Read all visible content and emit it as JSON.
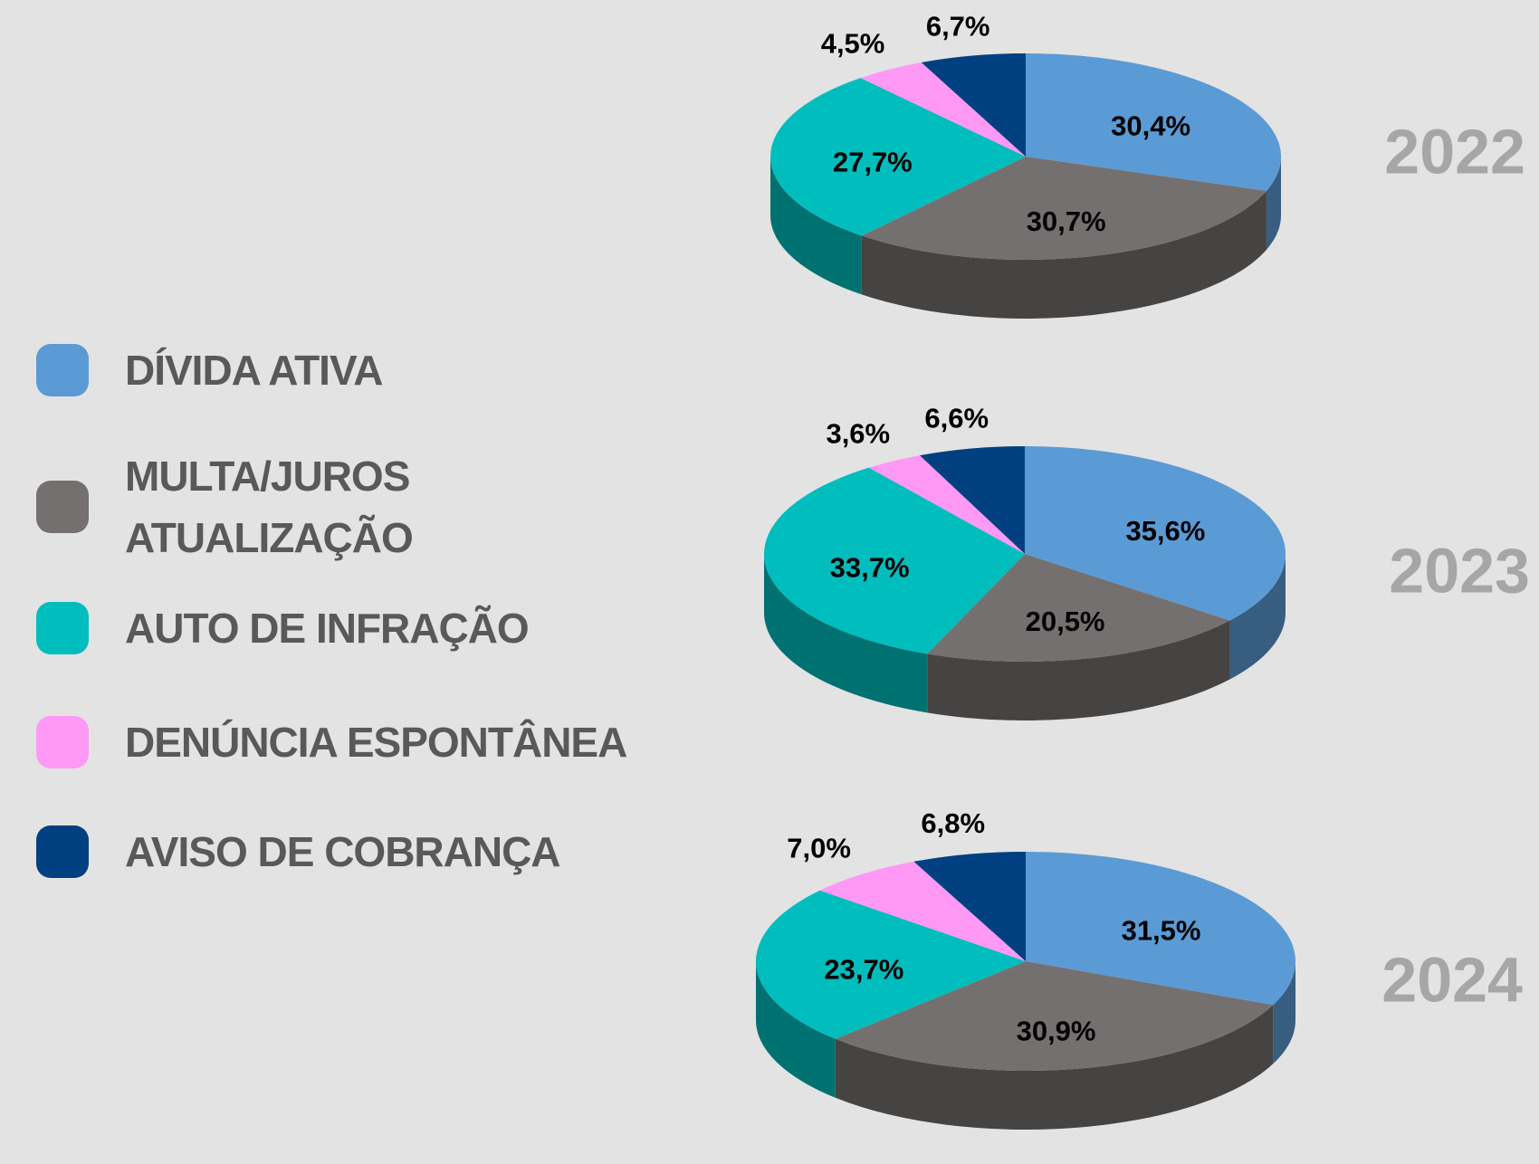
{
  "chart_data": [
    {
      "type": "pie",
      "title": "2022",
      "categories": [
        "DÍVIDA ATIVA",
        "MULTA/JUROS ATUALIZAÇÃO",
        "AUTO DE INFRAÇÃO",
        "DENÚNCIA ESPONTÂNEA",
        "AVISO DE COBRANÇA"
      ],
      "values": [
        30.4,
        30.7,
        27.7,
        4.5,
        6.7
      ],
      "value_labels": [
        "30,4%",
        "30,7%",
        "27,7%",
        "4,5%",
        "6,7%"
      ],
      "colors": [
        "#5b9bd5",
        "#757070",
        "#00bdbd",
        "#ff99f5",
        "#004080"
      ]
    },
    {
      "type": "pie",
      "title": "2023",
      "categories": [
        "DÍVIDA ATIVA",
        "MULTA/JUROS ATUALIZAÇÃO",
        "AUTO DE INFRAÇÃO",
        "DENÚNCIA ESPONTÂNEA",
        "AVISO DE COBRANÇA"
      ],
      "values": [
        35.6,
        20.5,
        33.7,
        3.6,
        6.6
      ],
      "value_labels": [
        "35,6%",
        "20,5%",
        "33,7%",
        "3,6%",
        "6,6%"
      ],
      "colors": [
        "#5b9bd5",
        "#757070",
        "#00bdbd",
        "#ff99f5",
        "#004080"
      ]
    },
    {
      "type": "pie",
      "title": "2024",
      "categories": [
        "DÍVIDA ATIVA",
        "MULTA/JUROS ATUALIZAÇÃO",
        "AUTO DE INFRAÇÃO",
        "DENÚNCIA ESPONTÂNEA",
        "AVISO DE COBRANÇA"
      ],
      "values": [
        31.5,
        30.9,
        23.7,
        7.0,
        6.8
      ],
      "value_labels": [
        "31,5%",
        "30,9%",
        "23,7%",
        "7,0%",
        "6,8%"
      ],
      "colors": [
        "#5b9bd5",
        "#757070",
        "#00bdbd",
        "#ff99f5",
        "#004080"
      ]
    }
  ]
}
